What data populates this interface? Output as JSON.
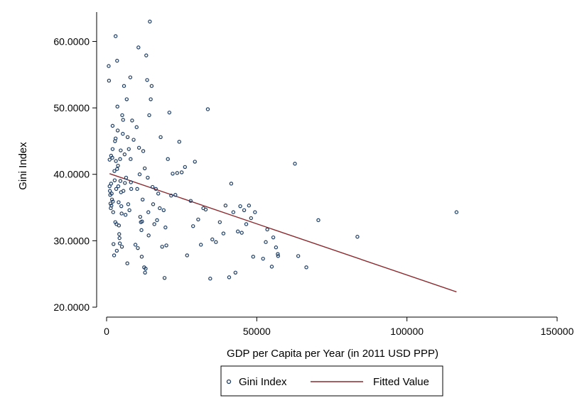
{
  "chart_data": {
    "type": "scatter",
    "title": "",
    "xlabel": "GDP per Capita per Year (in 2011 USD PPP)",
    "ylabel": "Gini Index",
    "xlim": [
      0,
      150000
    ],
    "ylim": [
      20,
      64
    ],
    "xticks": [
      0,
      50000,
      100000,
      150000
    ],
    "xtick_labels": [
      "0",
      "50000",
      "100000",
      "150000"
    ],
    "yticks": [
      20,
      30,
      40,
      50,
      60
    ],
    "ytick_labels": [
      "20.0000",
      "30.0000",
      "40.0000",
      "50.0000",
      "60.0000"
    ],
    "grid": false,
    "legend": {
      "placement": "bottom-center",
      "entries": [
        "Gini Index",
        "Fitted Value"
      ]
    },
    "colors": {
      "points": "#1f3f66",
      "fit": "#8b2a2e",
      "axis": "#000000"
    },
    "series": [
      {
        "name": "Gini Index",
        "kind": "scatter",
        "points": [
          [
            700,
            56.3
          ],
          [
            800,
            54.1
          ],
          [
            1000,
            42.2
          ],
          [
            1000,
            38.2
          ],
          [
            1100,
            37.5
          ],
          [
            1200,
            36.9
          ],
          [
            1300,
            35.6
          ],
          [
            1400,
            34.9
          ],
          [
            1500,
            42.8
          ],
          [
            1500,
            38.6
          ],
          [
            1600,
            35.3
          ],
          [
            1700,
            37.1
          ],
          [
            1800,
            36.2
          ],
          [
            1900,
            42.5
          ],
          [
            2000,
            43.8
          ],
          [
            2000,
            47.3
          ],
          [
            2100,
            35.9
          ],
          [
            2200,
            34.3
          ],
          [
            2300,
            29.5
          ],
          [
            2500,
            27.8
          ],
          [
            2600,
            40.5
          ],
          [
            2700,
            39.1
          ],
          [
            2800,
            45.0
          ],
          [
            2900,
            32.8
          ],
          [
            3000,
            60.8
          ],
          [
            3000,
            45.4
          ],
          [
            3100,
            42.0
          ],
          [
            3200,
            37.8
          ],
          [
            3300,
            32.5
          ],
          [
            3400,
            28.5
          ],
          [
            3500,
            40.8
          ],
          [
            3500,
            57.1
          ],
          [
            3600,
            50.2
          ],
          [
            3700,
            46.6
          ],
          [
            3800,
            41.3
          ],
          [
            3900,
            38.2
          ],
          [
            4000,
            35.8
          ],
          [
            4100,
            32.3
          ],
          [
            4200,
            31.0
          ],
          [
            4300,
            30.4
          ],
          [
            4400,
            29.6
          ],
          [
            4500,
            42.3
          ],
          [
            4600,
            39.0
          ],
          [
            4700,
            43.6
          ],
          [
            4800,
            37.3
          ],
          [
            4900,
            35.2
          ],
          [
            5000,
            34.1
          ],
          [
            5100,
            29.1
          ],
          [
            5200,
            48.9
          ],
          [
            5400,
            46.1
          ],
          [
            5500,
            48.2
          ],
          [
            5600,
            37.5
          ],
          [
            5800,
            53.3
          ],
          [
            6000,
            43.0
          ],
          [
            6100,
            38.7
          ],
          [
            6300,
            33.9
          ],
          [
            6500,
            39.5
          ],
          [
            6700,
            51.3
          ],
          [
            6900,
            26.6
          ],
          [
            7000,
            45.6
          ],
          [
            7200,
            35.5
          ],
          [
            7400,
            43.8
          ],
          [
            7600,
            34.6
          ],
          [
            7900,
            54.6
          ],
          [
            8000,
            42.3
          ],
          [
            8100,
            38.8
          ],
          [
            8200,
            37.8
          ],
          [
            8500,
            48.1
          ],
          [
            9000,
            45.2
          ],
          [
            9600,
            29.4
          ],
          [
            10000,
            47.1
          ],
          [
            10200,
            37.8
          ],
          [
            10400,
            28.9
          ],
          [
            10600,
            59.1
          ],
          [
            10800,
            44.0
          ],
          [
            11000,
            40.0
          ],
          [
            11200,
            33.6
          ],
          [
            11400,
            32.8
          ],
          [
            11600,
            31.6
          ],
          [
            11700,
            27.6
          ],
          [
            11800,
            32.9
          ],
          [
            12000,
            36.2
          ],
          [
            12200,
            43.5
          ],
          [
            12500,
            26.0
          ],
          [
            12700,
            40.9
          ],
          [
            12800,
            25.2
          ],
          [
            13000,
            25.8
          ],
          [
            13200,
            57.9
          ],
          [
            13500,
            54.2
          ],
          [
            13700,
            39.5
          ],
          [
            13900,
            34.3
          ],
          [
            14000,
            30.8
          ],
          [
            14200,
            48.9
          ],
          [
            14400,
            63.0
          ],
          [
            14700,
            51.3
          ],
          [
            15000,
            53.3
          ],
          [
            15300,
            38.1
          ],
          [
            15500,
            35.5
          ],
          [
            15900,
            32.5
          ],
          [
            16400,
            37.8
          ],
          [
            16800,
            33.1
          ],
          [
            17200,
            37.1
          ],
          [
            17700,
            34.9
          ],
          [
            18000,
            45.6
          ],
          [
            18500,
            29.1
          ],
          [
            19000,
            34.6
          ],
          [
            19300,
            24.4
          ],
          [
            19600,
            32.0
          ],
          [
            19900,
            29.3
          ],
          [
            20400,
            42.3
          ],
          [
            20900,
            49.3
          ],
          [
            21500,
            36.8
          ],
          [
            22000,
            40.1
          ],
          [
            22900,
            36.9
          ],
          [
            23500,
            40.2
          ],
          [
            24200,
            44.9
          ],
          [
            25000,
            40.3
          ],
          [
            26100,
            41.1
          ],
          [
            26800,
            27.8
          ],
          [
            28000,
            36.0
          ],
          [
            28800,
            32.2
          ],
          [
            29400,
            41.9
          ],
          [
            30500,
            33.2
          ],
          [
            31400,
            29.4
          ],
          [
            32200,
            34.9
          ],
          [
            33000,
            34.7
          ],
          [
            33700,
            49.8
          ],
          [
            34500,
            24.3
          ],
          [
            35200,
            30.2
          ],
          [
            36400,
            29.8
          ],
          [
            37700,
            32.8
          ],
          [
            38900,
            31.1
          ],
          [
            39600,
            35.3
          ],
          [
            40800,
            24.5
          ],
          [
            41500,
            38.6
          ],
          [
            42200,
            34.3
          ],
          [
            42900,
            25.2
          ],
          [
            43700,
            31.4
          ],
          [
            44500,
            35.2
          ],
          [
            45000,
            31.2
          ],
          [
            45800,
            34.6
          ],
          [
            46500,
            32.5
          ],
          [
            47400,
            35.3
          ],
          [
            48100,
            33.4
          ],
          [
            48800,
            27.6
          ],
          [
            49400,
            34.3
          ],
          [
            52100,
            27.3
          ],
          [
            53000,
            29.8
          ],
          [
            53500,
            31.7
          ],
          [
            55000,
            26.1
          ],
          [
            55500,
            30.5
          ],
          [
            56400,
            29.0
          ],
          [
            57100,
            27.7
          ],
          [
            62700,
            41.6
          ],
          [
            63800,
            27.7
          ],
          [
            66500,
            26.0
          ],
          [
            70500,
            33.1
          ],
          [
            83500,
            30.6
          ],
          [
            116500,
            34.3
          ],
          [
            57000,
            28.0
          ]
        ]
      },
      {
        "name": "Fitted Value",
        "kind": "line",
        "points": [
          [
            1000,
            40.1
          ],
          [
            116500,
            22.3
          ]
        ]
      }
    ]
  }
}
